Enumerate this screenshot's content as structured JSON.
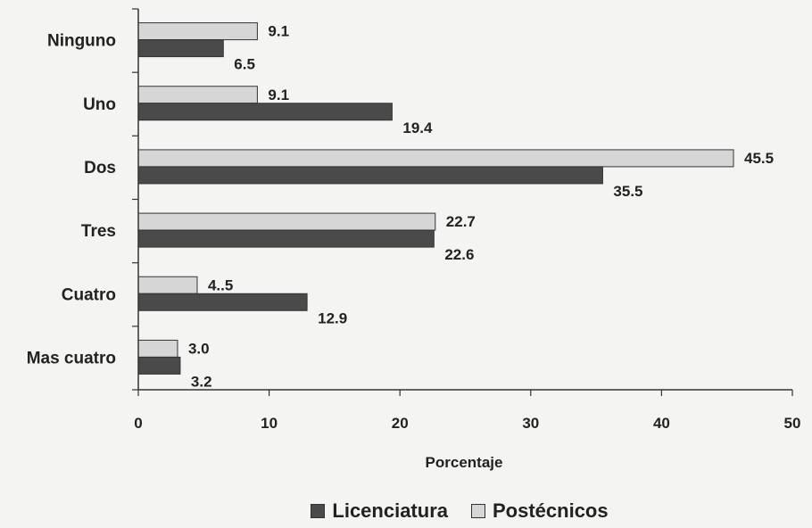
{
  "chart_data": {
    "type": "bar",
    "orientation": "horizontal",
    "categories": [
      "Ninguno",
      "Uno",
      "Dos",
      "Tres",
      "Cuatro",
      "Mas cuatro"
    ],
    "series": [
      {
        "name": "Postécnicos",
        "color": "#d6d6d6",
        "values": [
          9.1,
          9.1,
          45.5,
          22.7,
          4.5,
          3.0
        ],
        "labels": [
          "9.1",
          "9.1",
          "45.5",
          "22.7",
          "4..5",
          "3.0"
        ]
      },
      {
        "name": "Licenciatura",
        "color": "#4a4a4a",
        "values": [
          6.5,
          19.4,
          35.5,
          22.6,
          12.9,
          3.2
        ],
        "labels": [
          "6.5",
          "19.4",
          "35.5",
          "22.6",
          "12.9",
          "3.2"
        ]
      }
    ],
    "xlabel": "Porcentaje",
    "xlim": [
      0,
      50
    ],
    "xticks": [
      0,
      10,
      20,
      30,
      40,
      50
    ],
    "legend": "bottom"
  },
  "legend": {
    "items": [
      {
        "label": "Licenciatura",
        "color": "#4a4a4a"
      },
      {
        "label": "Postécnicos",
        "color": "#d6d6d6"
      }
    ]
  }
}
